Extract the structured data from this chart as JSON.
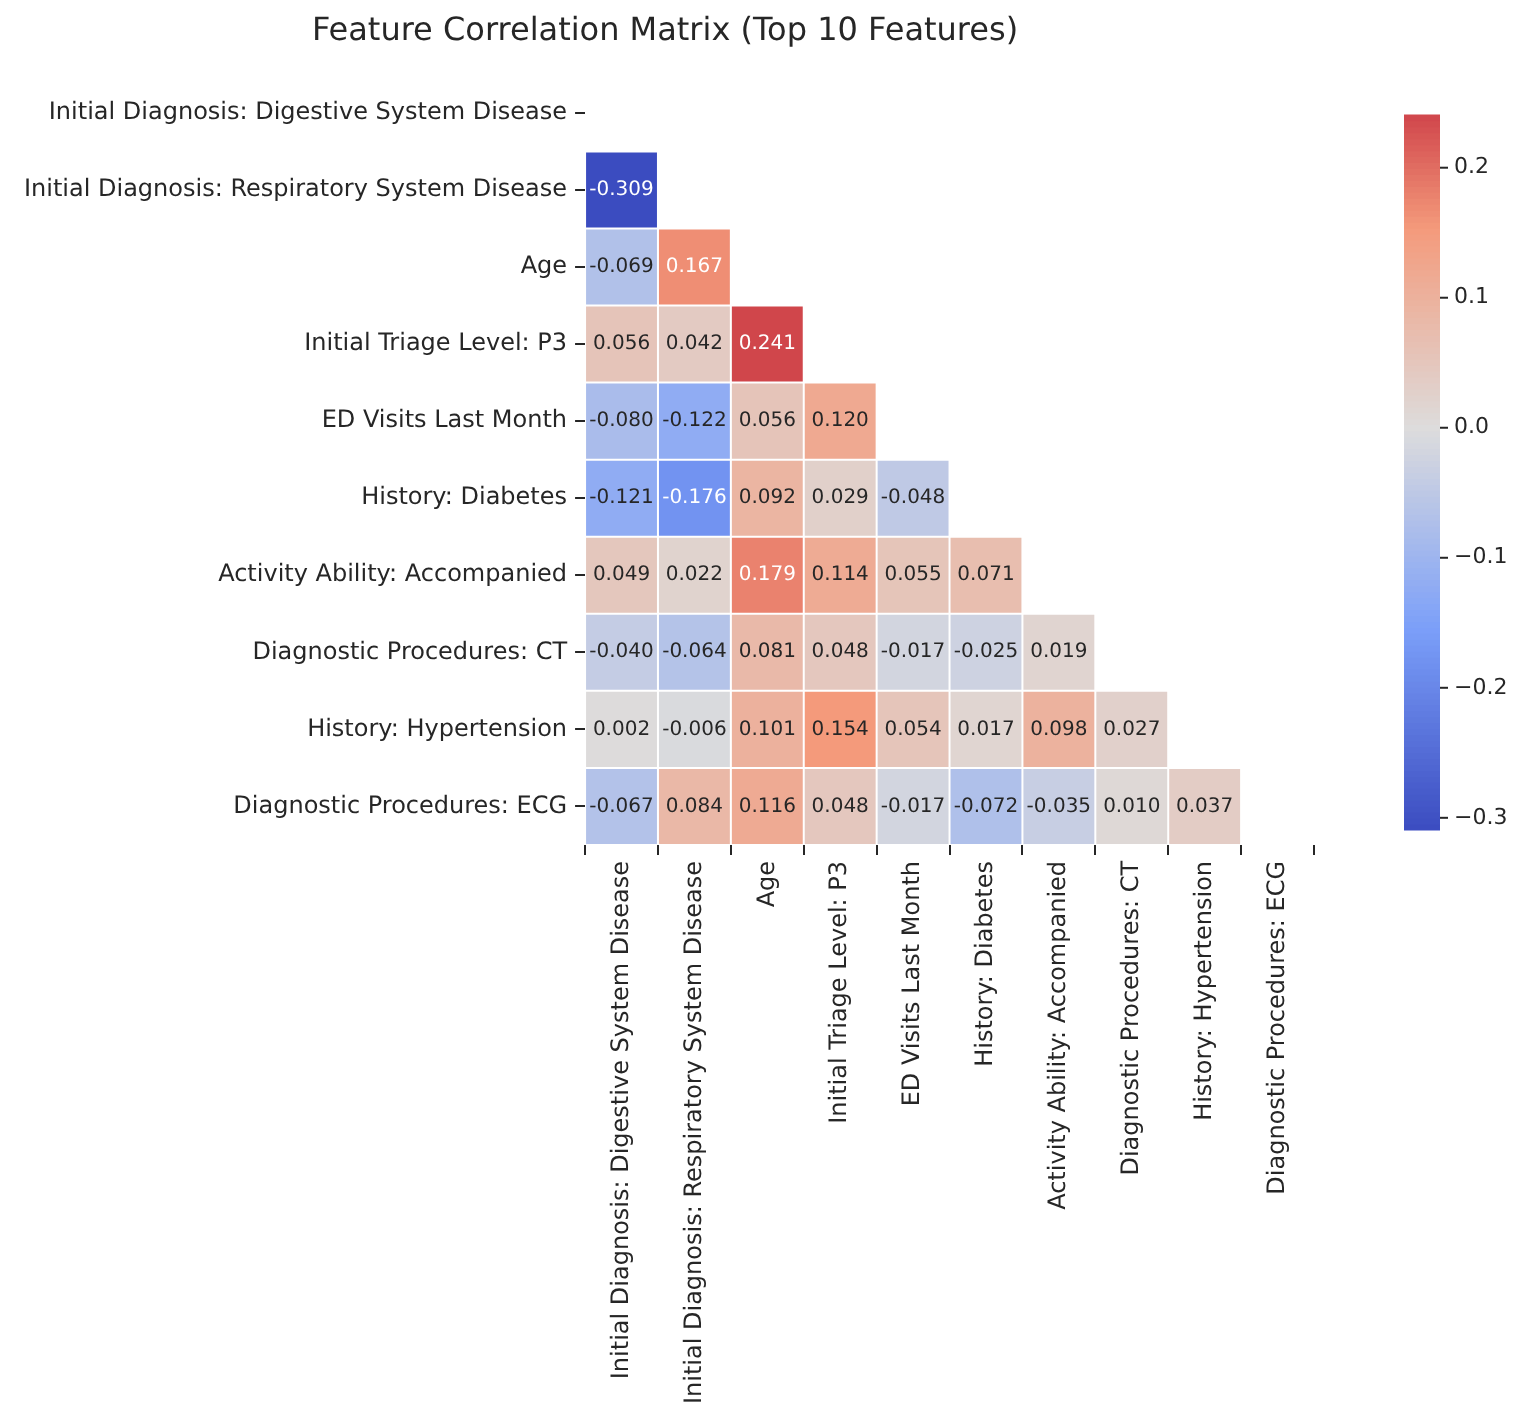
{
  "chart_data": {
    "type": "heatmap",
    "title": "Feature Correlation Matrix (Top 10 Features)",
    "categories": [
      "Initial Diagnosis: Digestive System Disease",
      "Initial Diagnosis: Respiratory System Disease",
      "Age",
      "Initial Triage Level: P3",
      "ED Visits Last Month",
      "History: Diabetes",
      "Activity Ability: Accompanied",
      "Diagnostic Procedures: CT",
      "History: Hypertension",
      "Diagnostic Procedures: ECG"
    ],
    "y_categories": [
      "Initial Diagnosis: Digestive System Disease",
      "Initial Diagnosis: Respiratory System Disease",
      "Age",
      "Initial Triage Level: P3",
      "ED Visits Last Month",
      "History: Diabetes",
      "Activity Ability: Accompanied",
      "Diagnostic Procedures: CT",
      "History: Hypertension",
      "Diagnostic Procedures: ECG"
    ],
    "cells": [
      [
        null,
        null,
        null,
        null,
        null,
        null,
        null,
        null,
        null,
        null
      ],
      [
        -0.309,
        null,
        null,
        null,
        null,
        null,
        null,
        null,
        null,
        null
      ],
      [
        -0.069,
        0.167,
        null,
        null,
        null,
        null,
        null,
        null,
        null,
        null
      ],
      [
        0.056,
        0.042,
        0.241,
        null,
        null,
        null,
        null,
        null,
        null,
        null
      ],
      [
        -0.08,
        -0.122,
        0.056,
        0.12,
        null,
        null,
        null,
        null,
        null,
        null
      ],
      [
        -0.121,
        -0.176,
        0.092,
        0.029,
        -0.048,
        null,
        null,
        null,
        null,
        null
      ],
      [
        0.049,
        0.022,
        0.179,
        0.114,
        0.055,
        0.071,
        null,
        null,
        null,
        null
      ],
      [
        -0.04,
        -0.064,
        0.081,
        0.048,
        -0.017,
        -0.025,
        0.019,
        null,
        null,
        null
      ],
      [
        0.002,
        -0.006,
        0.101,
        0.154,
        0.054,
        0.017,
        0.098,
        0.027,
        null,
        null
      ],
      [
        -0.067,
        0.084,
        0.116,
        0.048,
        -0.017,
        -0.072,
        -0.035,
        0.01,
        0.037,
        null
      ]
    ],
    "cell_labels": [
      [
        null,
        null,
        null,
        null,
        null,
        null,
        null,
        null,
        null,
        null
      ],
      [
        "-0.309",
        null,
        null,
        null,
        null,
        null,
        null,
        null,
        null,
        null
      ],
      [
        "-0.069",
        "0.167",
        null,
        null,
        null,
        null,
        null,
        null,
        null,
        null
      ],
      [
        "0.056",
        "0.042",
        "0.241",
        null,
        null,
        null,
        null,
        null,
        null,
        null
      ],
      [
        "-0.080",
        "-0.122",
        "0.056",
        "0.120",
        null,
        null,
        null,
        null,
        null,
        null
      ],
      [
        "-0.121",
        "-0.176",
        "0.092",
        "0.029",
        "-0.048",
        null,
        null,
        null,
        null,
        null
      ],
      [
        "0.049",
        "0.022",
        "0.179",
        "0.114",
        "0.055",
        "0.071",
        null,
        null,
        null,
        null
      ],
      [
        "-0.040",
        "-0.064",
        "0.081",
        "0.048",
        "-0.017",
        "-0.025",
        "0.019",
        null,
        null,
        null
      ],
      [
        "0.002",
        "-0.006",
        "0.101",
        "0.154",
        "0.054",
        "0.017",
        "0.098",
        "0.027",
        null,
        null
      ],
      [
        "-0.067",
        "0.084",
        "0.116",
        "0.048",
        "-0.017",
        "-0.072",
        "-0.035",
        "0.010",
        "0.037",
        null
      ]
    ],
    "clim": [
      -0.309,
      0.241
    ],
    "cticks": [
      {
        "value": -0.3,
        "label": "−0.3"
      },
      {
        "value": -0.2,
        "label": "−0.2"
      },
      {
        "value": -0.1,
        "label": "−0.1"
      },
      {
        "value": 0,
        "label": "0.0"
      },
      0.1,
      0.2
    ]
  }
}
